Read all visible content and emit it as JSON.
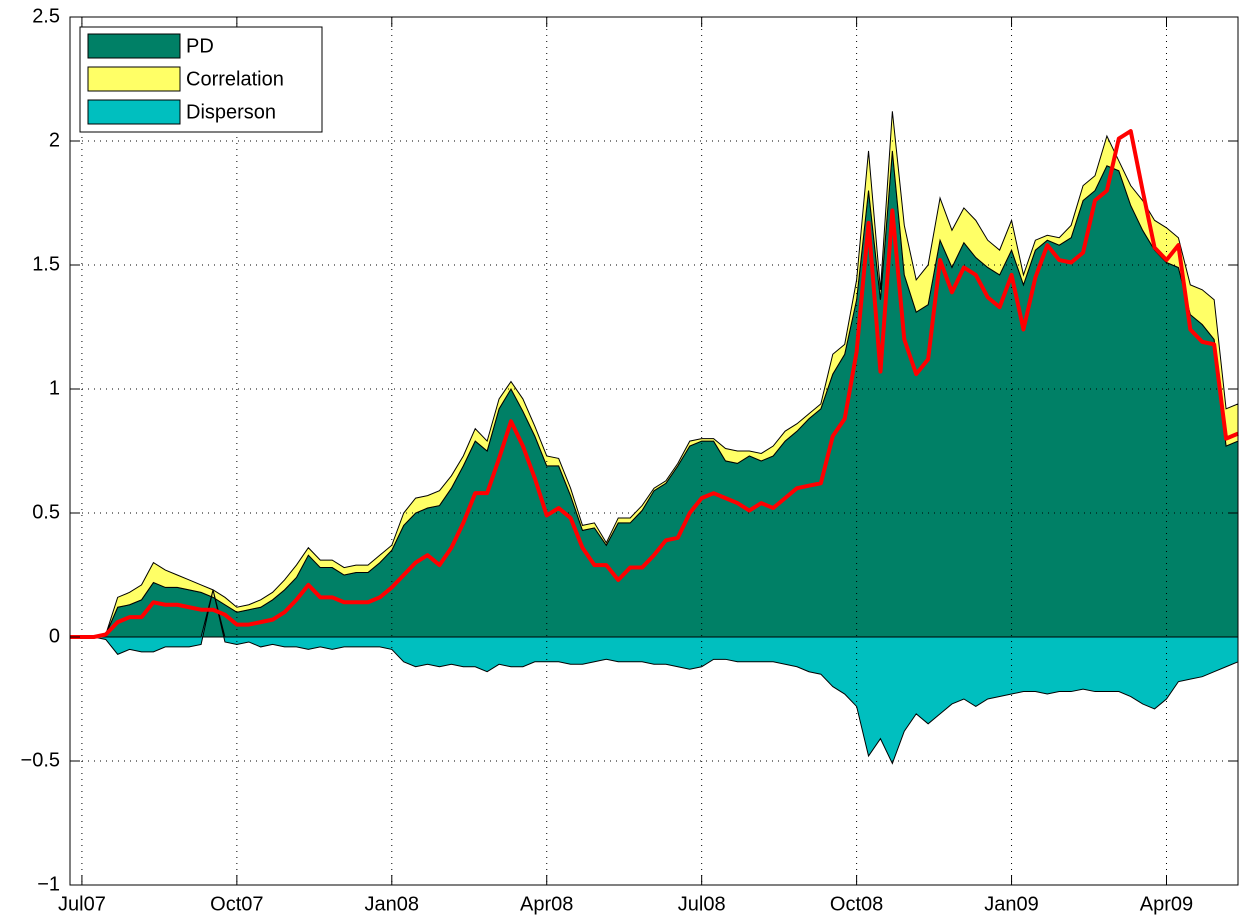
{
  "chart_data": {
    "type": "area",
    "categories": [
      null,
      "Jul07",
      null,
      null,
      null,
      null,
      null,
      null,
      null,
      null,
      null,
      null,
      null,
      null,
      "Oct07",
      null,
      null,
      null,
      null,
      null,
      null,
      null,
      null,
      null,
      null,
      null,
      null,
      "Jan08",
      null,
      null,
      null,
      null,
      null,
      null,
      null,
      null,
      null,
      null,
      null,
      null,
      "Apr08",
      null,
      null,
      null,
      null,
      null,
      null,
      null,
      null,
      null,
      null,
      null,
      null,
      "Jul08",
      null,
      null,
      null,
      null,
      null,
      null,
      null,
      null,
      null,
      null,
      null,
      null,
      "Oct08",
      null,
      null,
      null,
      null,
      null,
      null,
      null,
      null,
      null,
      null,
      null,
      null,
      "Jan09",
      null,
      null,
      null,
      null,
      null,
      null,
      null,
      null,
      null,
      null,
      null,
      null,
      "Apr09",
      null,
      null,
      null,
      null,
      null,
      null
    ],
    "series": [
      {
        "name": "PD",
        "color": "#008066",
        "values": [
          0,
          0,
          0,
          0.01,
          0.12,
          0.13,
          0.15,
          0.22,
          0.2,
          0.2,
          0.19,
          0.18,
          0.16,
          0.13,
          0.1,
          0.11,
          0.12,
          0.15,
          0.19,
          0.24,
          0.33,
          0.28,
          0.28,
          0.25,
          0.26,
          0.26,
          0.3,
          0.35,
          0.45,
          0.5,
          0.52,
          0.53,
          0.6,
          0.69,
          0.79,
          0.75,
          0.92,
          1.0,
          0.91,
          0.81,
          0.69,
          0.69,
          0.57,
          0.43,
          0.44,
          0.37,
          0.46,
          0.46,
          0.51,
          0.59,
          0.62,
          0.69,
          0.77,
          0.79,
          0.79,
          0.71,
          0.7,
          0.73,
          0.71,
          0.73,
          0.79,
          0.83,
          0.88,
          0.92,
          1.06,
          1.14,
          1.36,
          1.8,
          1.36,
          1.96,
          1.46,
          1.31,
          1.34,
          1.6,
          1.49,
          1.59,
          1.53,
          1.49,
          1.46,
          1.56,
          1.42,
          1.56,
          1.6,
          1.58,
          1.61,
          1.76,
          1.8,
          1.9,
          1.88,
          1.74,
          1.64,
          1.56,
          1.51,
          1.49,
          1.3,
          1.26,
          1.2,
          0.77,
          0.79
        ]
      },
      {
        "name": "Correlation",
        "color": "#ffff66",
        "values": [
          0,
          0,
          0,
          0,
          0.04,
          0.05,
          0.06,
          0.08,
          0.07,
          0.05,
          0.04,
          0.03,
          0.03,
          0.03,
          0.02,
          0.02,
          0.03,
          0.03,
          0.04,
          0.05,
          0.03,
          0.03,
          0.03,
          0.03,
          0.03,
          0.03,
          0.03,
          0.02,
          0.05,
          0.06,
          0.05,
          0.06,
          0.05,
          0.04,
          0.05,
          0.04,
          0.04,
          0.03,
          0.05,
          0.04,
          0.04,
          0.03,
          0.03,
          0.02,
          0.02,
          0.01,
          0.02,
          0.02,
          0.02,
          0.01,
          0.01,
          0.01,
          0.02,
          0.01,
          0.01,
          0.05,
          0.05,
          0.02,
          0.03,
          0.04,
          0.04,
          0.03,
          0.02,
          0.02,
          0.08,
          0.04,
          0.08,
          0.16,
          0.04,
          0.16,
          0.2,
          0.13,
          0.16,
          0.17,
          0.15,
          0.14,
          0.15,
          0.11,
          0.1,
          0.12,
          0.04,
          0.04,
          0.02,
          0.03,
          0.05,
          0.06,
          0.06,
          0.12,
          0.04,
          0.08,
          0.12,
          0.12,
          0.14,
          0.12,
          0.12,
          0.14,
          0.16,
          0.15,
          0.15
        ]
      },
      {
        "name": "Disperson",
        "color": "#00bfbf",
        "values": [
          0,
          0,
          0,
          -0.01,
          -0.07,
          -0.05,
          -0.06,
          -0.06,
          -0.04,
          -0.04,
          -0.04,
          -0.03,
          0,
          -0.02,
          -0.03,
          -0.02,
          -0.04,
          -0.03,
          -0.04,
          -0.04,
          -0.05,
          -0.04,
          -0.05,
          -0.04,
          -0.04,
          -0.04,
          -0.04,
          -0.05,
          -0.1,
          -0.12,
          -0.11,
          -0.12,
          -0.11,
          -0.12,
          -0.12,
          -0.14,
          -0.11,
          -0.12,
          -0.12,
          -0.1,
          -0.1,
          -0.1,
          -0.11,
          -0.11,
          -0.1,
          -0.09,
          -0.1,
          -0.1,
          -0.1,
          -0.11,
          -0.11,
          -0.12,
          -0.13,
          -0.12,
          -0.09,
          -0.09,
          -0.1,
          -0.1,
          -0.1,
          -0.1,
          -0.11,
          -0.12,
          -0.14,
          -0.15,
          -0.2,
          -0.23,
          -0.28,
          -0.48,
          -0.41,
          -0.51,
          -0.38,
          -0.31,
          -0.35,
          -0.31,
          -0.27,
          -0.25,
          -0.28,
          -0.25,
          -0.24,
          -0.23,
          -0.22,
          -0.22,
          -0.23,
          -0.22,
          -0.22,
          -0.21,
          -0.22,
          -0.22,
          -0.22,
          -0.24,
          -0.27,
          -0.29,
          -0.25,
          -0.18,
          -0.17,
          -0.16,
          -0.14,
          -0.12,
          -0.1
        ]
      }
    ],
    "line": {
      "color": "#ff0000",
      "values": [
        0,
        0,
        0,
        0.01,
        0.06,
        0.08,
        0.08,
        0.14,
        0.13,
        0.13,
        0.12,
        0.11,
        0.11,
        0.09,
        0.05,
        0.05,
        0.06,
        0.07,
        0.1,
        0.15,
        0.21,
        0.16,
        0.16,
        0.14,
        0.14,
        0.14,
        0.16,
        0.2,
        0.25,
        0.3,
        0.33,
        0.29,
        0.36,
        0.46,
        0.58,
        0.58,
        0.72,
        0.87,
        0.77,
        0.64,
        0.49,
        0.52,
        0.48,
        0.36,
        0.29,
        0.29,
        0.23,
        0.28,
        0.28,
        0.33,
        0.39,
        0.4,
        0.5,
        0.56,
        0.58,
        0.56,
        0.54,
        0.51,
        0.54,
        0.52,
        0.56,
        0.6,
        0.61,
        0.62,
        0.81,
        0.88,
        1.15,
        1.67,
        1.07,
        1.72,
        1.2,
        1.06,
        1.12,
        1.52,
        1.39,
        1.49,
        1.46,
        1.37,
        1.33,
        1.46,
        1.24,
        1.45,
        1.58,
        1.52,
        1.51,
        1.55,
        1.76,
        1.8,
        2.01,
        2.04,
        1.8,
        1.57,
        1.52,
        1.58,
        1.24,
        1.19,
        1.18,
        0.8,
        0.82
      ]
    },
    "ylim": [
      -1,
      2.5
    ],
    "yticks": [
      {
        "value": -1,
        "label": "−1"
      },
      {
        "value": -0.5,
        "label": "−0.5"
      },
      0,
      0.5,
      1,
      1.5,
      2,
      2.5
    ],
    "grid": true,
    "legend": "upper left"
  }
}
